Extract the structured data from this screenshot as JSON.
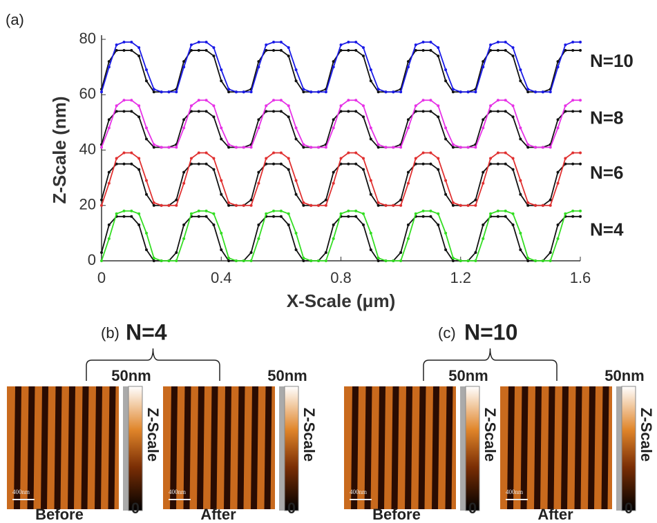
{
  "chart_data": {
    "type": "line",
    "label": "(a)",
    "xlabel": "X-Scale (μm)",
    "ylabel": "Z-Scale (nm)",
    "x": [
      0,
      0.025,
      0.05,
      0.075,
      0.1,
      0.125,
      0.15,
      0.175,
      0.2,
      0.225,
      0.25,
      0.275,
      0.3,
      0.325,
      0.35,
      0.375,
      0.4,
      0.425,
      0.45,
      0.475,
      0.5,
      0.525,
      0.55,
      0.575,
      0.6,
      0.625,
      0.65,
      0.675,
      0.7,
      0.725,
      0.75,
      0.775,
      0.8,
      0.825,
      0.85,
      0.875,
      0.9,
      0.925,
      0.95,
      0.975,
      1,
      1.025,
      1.05,
      1.075,
      1.1,
      1.125,
      1.15,
      1.175,
      1.2,
      1.225,
      1.25,
      1.275,
      1.3,
      1.325,
      1.35,
      1.375,
      1.4,
      1.425,
      1.45,
      1.475,
      1.5,
      1.525,
      1.55,
      1.575,
      1.6
    ],
    "series": [
      {
        "color": "#111111",
        "values": [
          62,
          72,
          76,
          76,
          76,
          74,
          65,
          61,
          61,
          61,
          62,
          72,
          76,
          76,
          76,
          74,
          65,
          61,
          61,
          61,
          62,
          72,
          76,
          76,
          76,
          74,
          65,
          61,
          61,
          61,
          62,
          72,
          76,
          76,
          76,
          74,
          65,
          61,
          61,
          61,
          62,
          72,
          76,
          76,
          76,
          74,
          65,
          61,
          61,
          61,
          62,
          72,
          76,
          76,
          76,
          74,
          65,
          61,
          61,
          61,
          62,
          72,
          76,
          76,
          76
        ]
      },
      {
        "name": "N=10",
        "color": "#1a1ae6",
        "values": [
          61,
          70,
          78,
          79,
          79,
          77,
          69,
          62,
          61,
          61,
          61,
          70,
          78,
          79,
          79,
          77,
          69,
          62,
          61,
          61,
          61,
          70,
          78,
          79,
          79,
          77,
          69,
          62,
          61,
          61,
          61,
          70,
          78,
          79,
          79,
          77,
          69,
          62,
          61,
          61,
          61,
          70,
          78,
          79,
          79,
          77,
          69,
          62,
          61,
          61,
          61,
          70,
          78,
          79,
          79,
          77,
          69,
          62,
          61,
          61,
          61,
          70,
          78,
          79,
          79
        ]
      },
      {
        "color": "#111111",
        "values": [
          42,
          51,
          54,
          54,
          54,
          52,
          44,
          41,
          41,
          41,
          42,
          51,
          54,
          54,
          54,
          52,
          44,
          41,
          41,
          41,
          42,
          51,
          54,
          54,
          54,
          52,
          44,
          41,
          41,
          41,
          42,
          51,
          54,
          54,
          54,
          52,
          44,
          41,
          41,
          41,
          42,
          51,
          54,
          54,
          54,
          52,
          44,
          41,
          41,
          41,
          42,
          51,
          54,
          54,
          54,
          52,
          44,
          41,
          41,
          41,
          42,
          51,
          54,
          54,
          54
        ]
      },
      {
        "name": "N=8",
        "color": "#e632e6",
        "values": [
          41,
          48,
          56,
          58,
          58,
          56,
          48,
          42,
          41,
          41,
          41,
          48,
          56,
          58,
          58,
          56,
          48,
          42,
          41,
          41,
          41,
          48,
          56,
          58,
          58,
          56,
          48,
          42,
          41,
          41,
          41,
          48,
          56,
          58,
          58,
          56,
          48,
          42,
          41,
          41,
          41,
          48,
          56,
          58,
          58,
          56,
          48,
          42,
          41,
          41,
          41,
          48,
          56,
          58,
          58,
          56,
          48,
          42,
          41,
          41,
          41,
          48,
          56,
          58,
          58
        ]
      },
      {
        "color": "#111111",
        "values": [
          22,
          32,
          35,
          35,
          35,
          33,
          24,
          20,
          20,
          20,
          22,
          32,
          35,
          35,
          35,
          33,
          24,
          20,
          20,
          20,
          22,
          32,
          35,
          35,
          35,
          33,
          24,
          20,
          20,
          20,
          22,
          32,
          35,
          35,
          35,
          33,
          24,
          20,
          20,
          20,
          22,
          32,
          35,
          35,
          35,
          33,
          24,
          20,
          20,
          20,
          22,
          32,
          35,
          35,
          35,
          33,
          24,
          20,
          20,
          20,
          22,
          32,
          35,
          35,
          35
        ]
      },
      {
        "name": "N=6",
        "color": "#e03030",
        "values": [
          20,
          28,
          37,
          39,
          39,
          37,
          29,
          21,
          20,
          20,
          20,
          28,
          37,
          39,
          39,
          37,
          29,
          21,
          20,
          20,
          20,
          28,
          37,
          39,
          39,
          37,
          29,
          21,
          20,
          20,
          20,
          28,
          37,
          39,
          39,
          37,
          29,
          21,
          20,
          20,
          20,
          28,
          37,
          39,
          39,
          37,
          29,
          21,
          20,
          20,
          20,
          28,
          37,
          39,
          39,
          37,
          29,
          21,
          20,
          20,
          20,
          28,
          37,
          39,
          39
        ]
      },
      {
        "color": "#111111",
        "values": [
          3,
          13,
          16,
          16,
          16,
          13,
          4,
          0,
          0,
          0,
          3,
          13,
          16,
          16,
          16,
          13,
          4,
          0,
          0,
          0,
          3,
          13,
          16,
          16,
          16,
          13,
          4,
          0,
          0,
          0,
          3,
          13,
          16,
          16,
          16,
          13,
          4,
          0,
          0,
          0,
          3,
          13,
          16,
          16,
          16,
          13,
          4,
          0,
          0,
          0,
          3,
          13,
          16,
          16,
          16,
          13,
          4,
          0,
          0,
          0,
          3,
          13,
          16,
          16,
          16
        ]
      },
      {
        "name": "N=4",
        "color": "#33dd22",
        "values": [
          0,
          8,
          17,
          18,
          18,
          17,
          10,
          1,
          0,
          0,
          0,
          8,
          17,
          18,
          18,
          17,
          10,
          1,
          0,
          0,
          0,
          8,
          17,
          18,
          18,
          17,
          10,
          1,
          0,
          0,
          0,
          8,
          17,
          18,
          18,
          17,
          10,
          1,
          0,
          0,
          0,
          8,
          17,
          18,
          18,
          17,
          10,
          1,
          0,
          0,
          0,
          8,
          17,
          18,
          18,
          17,
          10,
          1,
          0,
          0,
          0,
          8,
          17,
          18,
          18
        ]
      }
    ],
    "xlim": [
      0,
      1.6
    ],
    "xticks": [
      0,
      0.4,
      0.8,
      1.2,
      1.6
    ],
    "ylim": [
      0,
      80
    ],
    "yticks": [
      0,
      20,
      40,
      60,
      80
    ]
  },
  "panels": [
    {
      "label": "(b)",
      "title": "N=4",
      "title_color": "#33dd22",
      "images": [
        {
          "caption": "Before",
          "scale_bar": "400nm",
          "colorbar_max": "50nm",
          "colorbar_title": "Z-Scale",
          "colorbar_min": "0"
        },
        {
          "caption": "After",
          "scale_bar": "400nm",
          "colorbar_max": "50nm",
          "colorbar_title": "Z-Scale",
          "colorbar_min": "0"
        }
      ]
    },
    {
      "label": "(c)",
      "title": "N=10",
      "title_color": "#1a1ae6",
      "images": [
        {
          "caption": "Before",
          "scale_bar": "400nm",
          "colorbar_max": "50nm",
          "colorbar_title": "Z-Scale",
          "colorbar_min": "0"
        },
        {
          "caption": "After",
          "scale_bar": "400nm",
          "colorbar_max": "50nm",
          "colorbar_title": "Z-Scale",
          "colorbar_min": "0"
        }
      ]
    }
  ]
}
